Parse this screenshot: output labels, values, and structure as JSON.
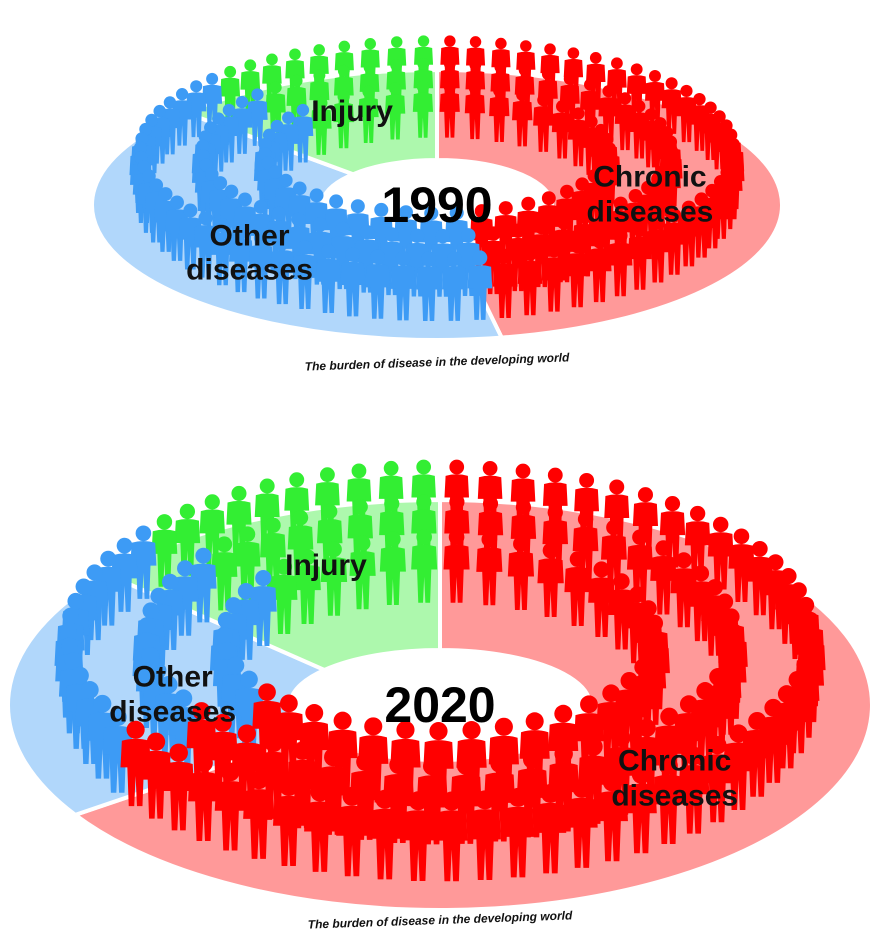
{
  "chart_data": [
    {
      "type": "pie",
      "title": "1990",
      "caption": "The burden of disease in the developing world",
      "categories": [
        "Chronic diseases",
        "Other diseases",
        "Injury"
      ],
      "values": [
        47,
        40,
        13
      ],
      "colors": [
        "#ff0000",
        "#3d9bf5",
        "#33ee33"
      ]
    },
    {
      "type": "pie",
      "title": "2020",
      "caption": "The burden of disease in the developing world",
      "categories": [
        "Chronic diseases",
        "Other diseases",
        "Injury"
      ],
      "values": [
        66,
        20,
        14
      ],
      "colors": [
        "#ff0000",
        "#3d9bf5",
        "#33ee33"
      ]
    }
  ]
}
